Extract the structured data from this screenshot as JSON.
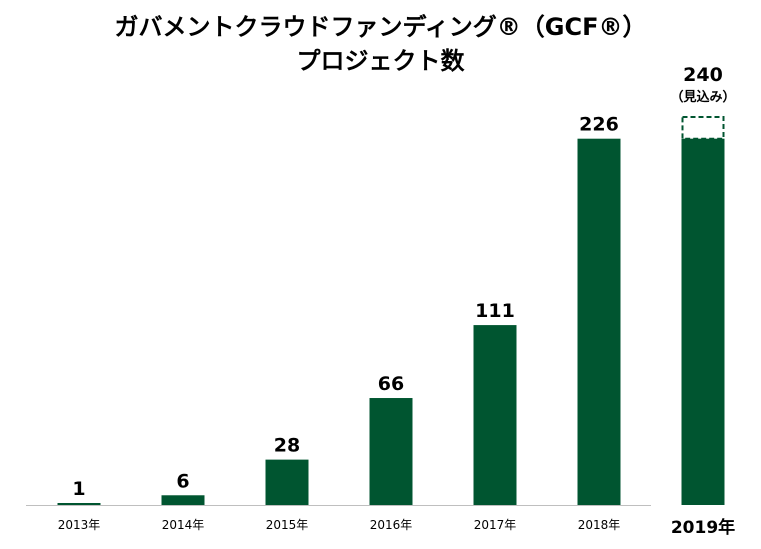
{
  "chart_data": {
    "type": "bar",
    "title_line1": "ガバメントクラウドファンディング®（GCF®）",
    "title_line2": "プロジェクト数",
    "categories": [
      "2013年",
      "2014年",
      "2015年",
      "2016年",
      "2017年",
      "2018年",
      "2019年"
    ],
    "values": [
      1,
      6,
      28,
      66,
      111,
      226,
      240
    ],
    "value_labels": [
      "1",
      "6",
      "28",
      "66",
      "111",
      "226",
      "240"
    ],
    "estimate_note": "（見込み）",
    "estimate_category": "2019年",
    "estimate_solid_value": 226,
    "bar_color": "#005530",
    "ylim": [
      0,
      240
    ],
    "grid": false,
    "legend": "none"
  }
}
